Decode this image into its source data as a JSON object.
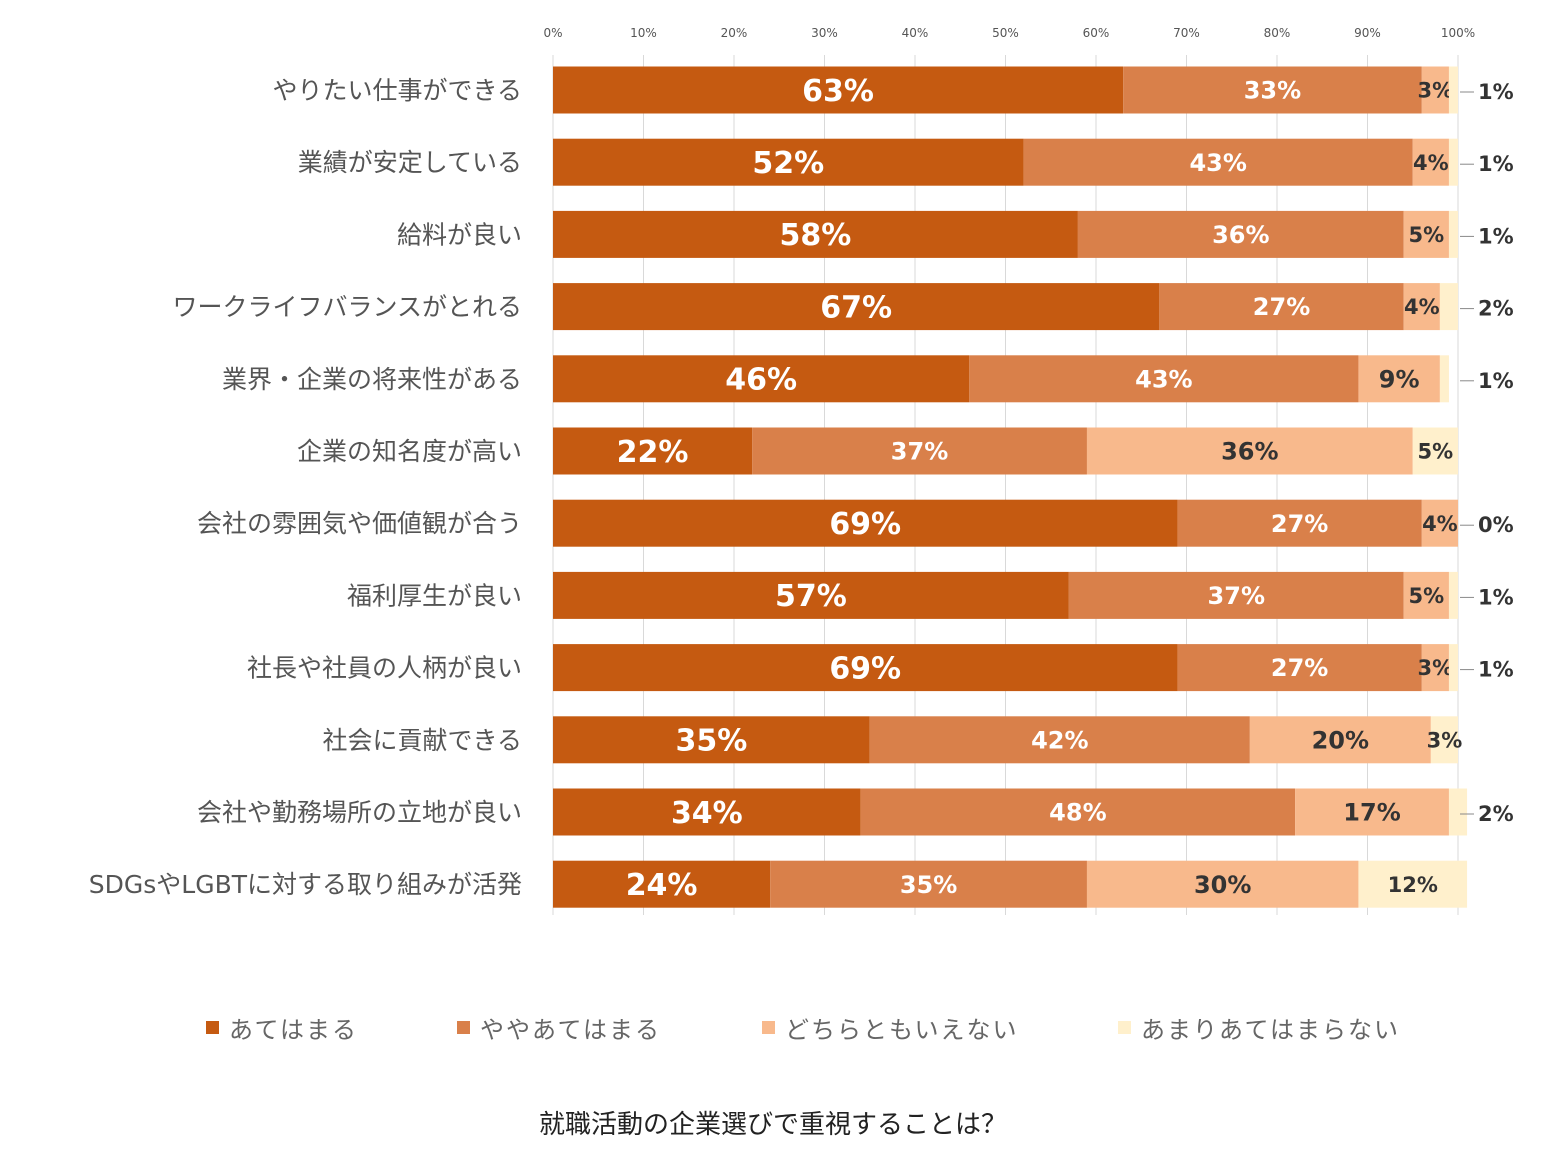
{
  "chart_data": {
    "type": "bar",
    "orientation": "horizontal",
    "stacked": true,
    "percent": true,
    "xlim": [
      0,
      100
    ],
    "x_ticks": [
      "0%",
      "10%",
      "20%",
      "30%",
      "40%",
      "50%",
      "60%",
      "70%",
      "80%",
      "90%",
      "100%"
    ],
    "grid": true,
    "legend_position": "bottom",
    "title": "就職活動の企業選びで重視することは？",
    "categories": [
      "やりたい仕事ができる",
      "業績が安定している",
      "給料が良い",
      "ワークライフバランスがとれる",
      "業界・企業の将来性がある",
      "企業の知名度が高い",
      "会社の雰囲気や価値観が合う",
      "福利厚生が良い",
      "社長や社員の人柄が良い",
      "社会に貢献できる",
      "会社や勤務場所の立地が良い",
      "SDGsやLGBTに対する取り組みが活発"
    ],
    "series": [
      {
        "name": "あてはまる",
        "color": "#C55A11",
        "values": [
          63,
          52,
          58,
          67,
          46,
          22,
          69,
          57,
          69,
          35,
          34,
          24
        ]
      },
      {
        "name": "ややあてはまる",
        "color": "#D9804A",
        "values": [
          33,
          43,
          36,
          27,
          43,
          37,
          27,
          37,
          27,
          42,
          48,
          35
        ]
      },
      {
        "name": "どちらともいえない",
        "color": "#F8B98C",
        "values": [
          3,
          4,
          5,
          4,
          9,
          36,
          4,
          5,
          3,
          20,
          17,
          30
        ]
      },
      {
        "name": "あまりあてはまらない",
        "color": "#FFF0CC",
        "values": [
          1,
          1,
          1,
          2,
          1,
          5,
          0,
          1,
          1,
          3,
          2,
          12
        ]
      }
    ],
    "data_labels": [
      [
        "63%",
        "33%",
        "3%",
        "1%"
      ],
      [
        "52%",
        "43%",
        "4%",
        "1%"
      ],
      [
        "58%",
        "36%",
        "5%",
        "1%"
      ],
      [
        "67%",
        "27%",
        "4%",
        "2%"
      ],
      [
        "46%",
        "43%",
        "9%",
        "1%"
      ],
      [
        "22%",
        "37%",
        "36%",
        "5%"
      ],
      [
        "69%",
        "27%",
        "4%",
        "0%"
      ],
      [
        "57%",
        "37%",
        "5%",
        "1%"
      ],
      [
        "69%",
        "27%",
        "3%",
        "1%"
      ],
      [
        "35%",
        "42%",
        "20%",
        "3%"
      ],
      [
        "34%",
        "48%",
        "17%",
        "2%"
      ],
      [
        "24%",
        "35%",
        "30%",
        "12%"
      ]
    ]
  }
}
